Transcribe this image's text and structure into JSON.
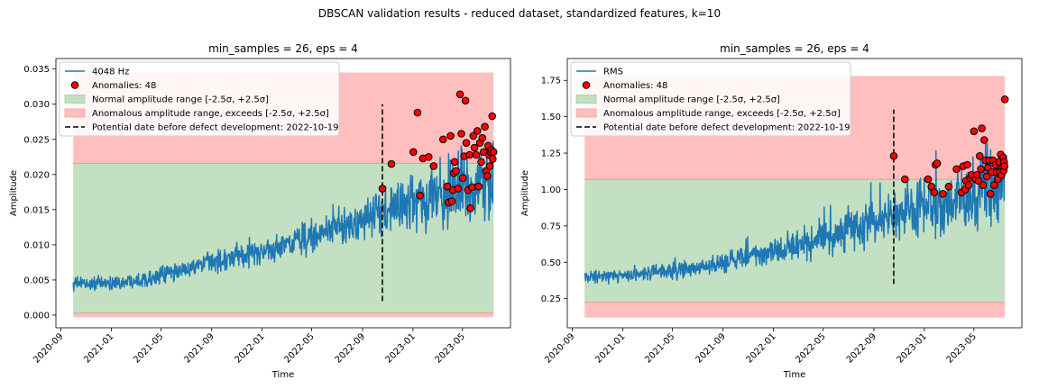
{
  "figure": {
    "suptitle": "DBSCAN validation results - reduced dataset, standardized features, k=10"
  },
  "colors": {
    "signal": "#1f77b4",
    "normal_fill": "#2ca02c",
    "anomalous_fill": "#ff0000",
    "anomaly_marker": "#ff0000",
    "anomaly_edge": "#000000",
    "date_line": "#000000"
  },
  "chart_data": [
    {
      "type": "line",
      "title": "min_samples = 26, eps = 4",
      "xlabel": "Time",
      "ylabel": "Amplitude",
      "x_is_date": true,
      "x_start": "2020-10-01",
      "x_end": "2023-07-15",
      "xlim": [
        "2020-08-20",
        "2023-08-25"
      ],
      "x_ticks": [
        "2020-09",
        "2021-01",
        "2021-05",
        "2021-09",
        "2022-01",
        "2022-05",
        "2022-09",
        "2023-01",
        "2023-05"
      ],
      "ylim": [
        -0.0018,
        0.0365
      ],
      "y_ticks": [
        "0.000",
        "0.005",
        "0.010",
        "0.015",
        "0.020",
        "0.025",
        "0.030",
        "0.035"
      ],
      "y_tick_values": [
        0,
        0.005,
        0.01,
        0.015,
        0.02,
        0.025,
        0.03,
        0.035
      ],
      "trend": [
        {
          "date": "2020-10-01",
          "value": 0.0045
        },
        {
          "date": "2021-01-01",
          "value": 0.0045
        },
        {
          "date": "2021-05-01",
          "value": 0.0055
        },
        {
          "date": "2021-09-01",
          "value": 0.0075
        },
        {
          "date": "2022-01-01",
          "value": 0.009
        },
        {
          "date": "2022-05-01",
          "value": 0.011
        },
        {
          "date": "2022-09-01",
          "value": 0.0135
        },
        {
          "date": "2023-01-01",
          "value": 0.016
        },
        {
          "date": "2023-05-01",
          "value": 0.018
        },
        {
          "date": "2023-07-15",
          "value": 0.019
        }
      ],
      "series": [
        {
          "name": "4048 Hz",
          "kind": "line"
        },
        {
          "name": "Anomalies: 48",
          "kind": "scatter"
        },
        {
          "name": "Normal amplitude range [-2.5σ, +2.5σ]",
          "kind": "band",
          "y_range": [
            0.0003,
            0.0216
          ]
        },
        {
          "name": "Anomalous amplitude range, exceeds [-2.5σ, +2.5σ]",
          "kind": "band",
          "y_range": [
            -0.0003,
            0.0345
          ]
        },
        {
          "name": "Potential date before defect development: 2022-10-19",
          "kind": "vline",
          "date": "2022-10-19",
          "y_range": [
            0.002,
            0.03
          ]
        }
      ],
      "anomalies": [
        {
          "date": "2022-10-19",
          "value": 0.018
        },
        {
          "date": "2022-11-10",
          "value": 0.0215
        },
        {
          "date": "2023-01-02",
          "value": 0.0232
        },
        {
          "date": "2023-01-12",
          "value": 0.0288
        },
        {
          "date": "2023-01-18",
          "value": 0.017
        },
        {
          "date": "2023-01-25",
          "value": 0.0223
        },
        {
          "date": "2023-02-08",
          "value": 0.0225
        },
        {
          "date": "2023-02-20",
          "value": 0.0212
        },
        {
          "date": "2023-03-15",
          "value": 0.025
        },
        {
          "date": "2023-03-25",
          "value": 0.0183
        },
        {
          "date": "2023-03-28",
          "value": 0.016
        },
        {
          "date": "2023-04-02",
          "value": 0.0255
        },
        {
          "date": "2023-04-05",
          "value": 0.0162
        },
        {
          "date": "2023-04-08",
          "value": 0.0178
        },
        {
          "date": "2023-04-10",
          "value": 0.0202
        },
        {
          "date": "2023-04-12",
          "value": 0.0218
        },
        {
          "date": "2023-04-15",
          "value": 0.0205
        },
        {
          "date": "2023-04-20",
          "value": 0.018
        },
        {
          "date": "2023-04-25",
          "value": 0.0314
        },
        {
          "date": "2023-04-28",
          "value": 0.0258
        },
        {
          "date": "2023-05-02",
          "value": 0.0195
        },
        {
          "date": "2023-05-05",
          "value": 0.0226
        },
        {
          "date": "2023-05-08",
          "value": 0.0305
        },
        {
          "date": "2023-05-10",
          "value": 0.0245
        },
        {
          "date": "2023-05-14",
          "value": 0.0178
        },
        {
          "date": "2023-05-18",
          "value": 0.0228
        },
        {
          "date": "2023-05-20",
          "value": 0.0152
        },
        {
          "date": "2023-05-24",
          "value": 0.0182
        },
        {
          "date": "2023-05-27",
          "value": 0.0255
        },
        {
          "date": "2023-05-30",
          "value": 0.0238
        },
        {
          "date": "2023-06-03",
          "value": 0.0228
        },
        {
          "date": "2023-06-06",
          "value": 0.0262
        },
        {
          "date": "2023-06-09",
          "value": 0.0183
        },
        {
          "date": "2023-06-12",
          "value": 0.0245
        },
        {
          "date": "2023-06-15",
          "value": 0.0218
        },
        {
          "date": "2023-06-18",
          "value": 0.0252
        },
        {
          "date": "2023-06-21",
          "value": 0.0232
        },
        {
          "date": "2023-06-24",
          "value": 0.0268
        },
        {
          "date": "2023-06-27",
          "value": 0.0205
        },
        {
          "date": "2023-06-30",
          "value": 0.0198
        },
        {
          "date": "2023-07-02",
          "value": 0.0241
        },
        {
          "date": "2023-07-04",
          "value": 0.0228
        },
        {
          "date": "2023-07-06",
          "value": 0.0212
        },
        {
          "date": "2023-07-08",
          "value": 0.0232
        },
        {
          "date": "2023-07-10",
          "value": 0.0235
        },
        {
          "date": "2023-07-12",
          "value": 0.0283
        },
        {
          "date": "2023-07-13",
          "value": 0.0222
        },
        {
          "date": "2023-07-15",
          "value": 0.0232
        }
      ]
    },
    {
      "type": "line",
      "title": "min_samples = 26, eps = 4",
      "xlabel": "Time",
      "ylabel": "Amplitude",
      "x_is_date": true,
      "x_start": "2020-10-01",
      "x_end": "2023-07-15",
      "xlim": [
        "2020-08-20",
        "2023-08-25"
      ],
      "x_ticks": [
        "2020-09",
        "2021-01",
        "2021-05",
        "2021-09",
        "2022-01",
        "2022-05",
        "2022-09",
        "2023-01",
        "2023-05"
      ],
      "ylim": [
        0.05,
        1.9
      ],
      "y_ticks": [
        "0.25",
        "0.50",
        "0.75",
        "1.00",
        "1.25",
        "1.50",
        "1.75"
      ],
      "y_tick_values": [
        0.25,
        0.5,
        0.75,
        1.0,
        1.25,
        1.5,
        1.75
      ],
      "trend": [
        {
          "date": "2020-10-01",
          "value": 0.4
        },
        {
          "date": "2021-01-01",
          "value": 0.41
        },
        {
          "date": "2021-05-01",
          "value": 0.44
        },
        {
          "date": "2021-09-01",
          "value": 0.5
        },
        {
          "date": "2022-01-01",
          "value": 0.57
        },
        {
          "date": "2022-05-01",
          "value": 0.66
        },
        {
          "date": "2022-09-01",
          "value": 0.77
        },
        {
          "date": "2023-01-01",
          "value": 0.87
        },
        {
          "date": "2023-05-01",
          "value": 0.96
        },
        {
          "date": "2023-07-15",
          "value": 1.02
        }
      ],
      "series": [
        {
          "name": "RMS",
          "kind": "line"
        },
        {
          "name": "Anomalies: 48",
          "kind": "scatter"
        },
        {
          "name": "Normal amplitude range [-2.5σ, +2.5σ]",
          "kind": "band",
          "y_range": [
            0.225,
            1.07
          ]
        },
        {
          "name": "Anomalous amplitude range, exceeds [-2.5σ, +2.5σ]",
          "kind": "band",
          "y_range": [
            0.12,
            1.78
          ]
        },
        {
          "name": "Potential date before defect development: 2022-10-19",
          "kind": "vline",
          "date": "2022-10-19",
          "y_range": [
            0.35,
            1.55
          ]
        }
      ],
      "anomalies": [
        {
          "date": "2022-10-19",
          "value": 1.23
        },
        {
          "date": "2022-11-15",
          "value": 1.07
        },
        {
          "date": "2023-01-10",
          "value": 1.07
        },
        {
          "date": "2023-01-18",
          "value": 1.02
        },
        {
          "date": "2023-01-25",
          "value": 0.98
        },
        {
          "date": "2023-01-28",
          "value": 1.17
        },
        {
          "date": "2023-02-01",
          "value": 1.18
        },
        {
          "date": "2023-02-15",
          "value": 0.97
        },
        {
          "date": "2023-03-01",
          "value": 1.02
        },
        {
          "date": "2023-03-20",
          "value": 1.14
        },
        {
          "date": "2023-04-01",
          "value": 0.98
        },
        {
          "date": "2023-04-05",
          "value": 1.16
        },
        {
          "date": "2023-04-10",
          "value": 1.0
        },
        {
          "date": "2023-04-12",
          "value": 1.06
        },
        {
          "date": "2023-04-15",
          "value": 1.17
        },
        {
          "date": "2023-04-18",
          "value": 1.03
        },
        {
          "date": "2023-04-22",
          "value": 1.08
        },
        {
          "date": "2023-04-25",
          "value": 1.1
        },
        {
          "date": "2023-05-01",
          "value": 1.4
        },
        {
          "date": "2023-05-05",
          "value": 1.07
        },
        {
          "date": "2023-05-08",
          "value": 1.1
        },
        {
          "date": "2023-05-12",
          "value": 1.06
        },
        {
          "date": "2023-05-15",
          "value": 1.23
        },
        {
          "date": "2023-05-18",
          "value": 1.14
        },
        {
          "date": "2023-05-20",
          "value": 1.42
        },
        {
          "date": "2023-05-23",
          "value": 1.03
        },
        {
          "date": "2023-05-26",
          "value": 1.34
        },
        {
          "date": "2023-05-29",
          "value": 1.2
        },
        {
          "date": "2023-06-01",
          "value": 1.09
        },
        {
          "date": "2023-06-04",
          "value": 1.15
        },
        {
          "date": "2023-06-07",
          "value": 1.2
        },
        {
          "date": "2023-06-10",
          "value": 0.97
        },
        {
          "date": "2023-06-13",
          "value": 1.12
        },
        {
          "date": "2023-06-16",
          "value": 1.2
        },
        {
          "date": "2023-06-19",
          "value": 1.03
        },
        {
          "date": "2023-06-22",
          "value": 1.17
        },
        {
          "date": "2023-06-25",
          "value": 1.12
        },
        {
          "date": "2023-06-28",
          "value": 1.07
        },
        {
          "date": "2023-07-01",
          "value": 1.19
        },
        {
          "date": "2023-07-03",
          "value": 1.12
        },
        {
          "date": "2023-07-05",
          "value": 1.24
        },
        {
          "date": "2023-07-07",
          "value": 1.1
        },
        {
          "date": "2023-07-09",
          "value": 1.15
        },
        {
          "date": "2023-07-11",
          "value": 1.22
        },
        {
          "date": "2023-07-12",
          "value": 1.13
        },
        {
          "date": "2023-07-13",
          "value": 1.19
        },
        {
          "date": "2023-07-14",
          "value": 1.16
        },
        {
          "date": "2023-07-15",
          "value": 1.62
        }
      ]
    }
  ]
}
